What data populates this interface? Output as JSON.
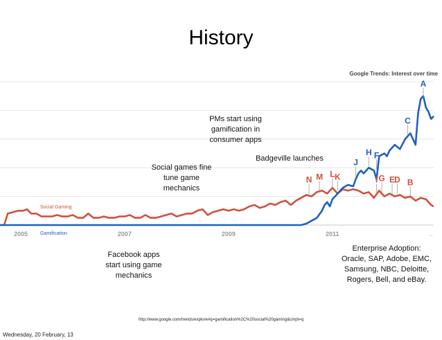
{
  "slide": {
    "title": "History",
    "trends_label": "Google Trends: Interest over time",
    "url": "http://www.google.com/trends/explore#q=gamification%2C%20social%20gaming&cmpt=q",
    "footer_date": "Wednesday, 20 February, 13"
  },
  "annotations": {
    "pms": [
      "PMs start using",
      "gamification in",
      "consumer apps"
    ],
    "badgeville": [
      "Badgeville launches"
    ],
    "social_games": [
      "Social games fine",
      "tune game",
      "mechanics"
    ],
    "facebook": [
      "Facebook apps",
      "start using game",
      "mechanics"
    ],
    "enterprise": [
      "Enterprise Adoption:",
      "Oracle, SAP, Adobe, EMC,",
      "Samsung, NBC, Deloitte,",
      "Rogers, Bell, and eBay."
    ]
  },
  "chart_data": {
    "type": "line",
    "source": "Google Trends: Interest over time",
    "x_ticks": [
      "2005",
      "2007",
      "2009",
      "2011"
    ],
    "x_ticks_value": [
      2005,
      2007,
      2009,
      2011
    ],
    "x_trailing_label": "..",
    "xlim": [
      2004.6,
      2012.95
    ],
    "ylim": [
      0,
      100
    ],
    "grid": true,
    "colors": {
      "social": "#d2503c",
      "gamification": "#2060c0",
      "grid": "#e4e4e4",
      "axis": "#999999"
    },
    "series": [
      {
        "name": "Social Gaming",
        "color": "#d2503c",
        "points": [
          [
            2004.6,
            0
          ],
          [
            2004.68,
            0
          ],
          [
            2004.75,
            8
          ],
          [
            2004.85,
            9
          ],
          [
            2004.95,
            10
          ],
          [
            2005.05,
            10
          ],
          [
            2005.12,
            11
          ],
          [
            2005.2,
            8
          ],
          [
            2005.3,
            8
          ],
          [
            2005.4,
            6
          ],
          [
            2005.5,
            6
          ],
          [
            2005.6,
            6
          ],
          [
            2005.7,
            7
          ],
          [
            2005.8,
            6
          ],
          [
            2005.9,
            6
          ],
          [
            2006.0,
            7
          ],
          [
            2006.1,
            5
          ],
          [
            2006.2,
            5
          ],
          [
            2006.3,
            8
          ],
          [
            2006.4,
            5
          ],
          [
            2006.5,
            5
          ],
          [
            2006.6,
            6
          ],
          [
            2006.7,
            5
          ],
          [
            2006.8,
            5
          ],
          [
            2006.9,
            6
          ],
          [
            2007.0,
            6
          ],
          [
            2007.1,
            7
          ],
          [
            2007.2,
            5
          ],
          [
            2007.3,
            5
          ],
          [
            2007.4,
            7
          ],
          [
            2007.5,
            5
          ],
          [
            2007.6,
            5
          ],
          [
            2007.7,
            6
          ],
          [
            2007.8,
            7
          ],
          [
            2007.9,
            8
          ],
          [
            2008.0,
            6
          ],
          [
            2008.1,
            7
          ],
          [
            2008.2,
            8
          ],
          [
            2008.3,
            8
          ],
          [
            2008.4,
            10
          ],
          [
            2008.5,
            11
          ],
          [
            2008.6,
            7
          ],
          [
            2008.7,
            9
          ],
          [
            2008.8,
            10
          ],
          [
            2008.9,
            11
          ],
          [
            2009.0,
            10
          ],
          [
            2009.1,
            11
          ],
          [
            2009.2,
            10
          ],
          [
            2009.3,
            11
          ],
          [
            2009.4,
            13
          ],
          [
            2009.5,
            14
          ],
          [
            2009.6,
            12
          ],
          [
            2009.7,
            13
          ],
          [
            2009.8,
            15
          ],
          [
            2009.9,
            14
          ],
          [
            2010.0,
            16
          ],
          [
            2010.1,
            17
          ],
          [
            2010.2,
            14
          ],
          [
            2010.3,
            17
          ],
          [
            2010.4,
            19
          ],
          [
            2010.5,
            21
          ],
          [
            2010.6,
            20
          ],
          [
            2010.7,
            23
          ],
          [
            2010.8,
            24
          ],
          [
            2010.9,
            22
          ],
          [
            2011.0,
            26
          ],
          [
            2011.1,
            22
          ],
          [
            2011.2,
            25
          ],
          [
            2011.3,
            24
          ],
          [
            2011.4,
            25
          ],
          [
            2011.5,
            24
          ],
          [
            2011.6,
            22
          ],
          [
            2011.7,
            23
          ],
          [
            2011.8,
            19
          ],
          [
            2011.9,
            24
          ],
          [
            2012.0,
            20
          ],
          [
            2012.1,
            22
          ],
          [
            2012.2,
            20
          ],
          [
            2012.3,
            21
          ],
          [
            2012.4,
            19
          ],
          [
            2012.5,
            20
          ],
          [
            2012.6,
            17
          ],
          [
            2012.7,
            19
          ],
          [
            2012.8,
            18
          ],
          [
            2012.9,
            14
          ],
          [
            2012.95,
            13
          ]
        ]
      },
      {
        "name": "Gamification",
        "color": "#2060c0",
        "points": [
          [
            2004.6,
            0
          ],
          [
            2010.4,
            0
          ],
          [
            2010.5,
            1
          ],
          [
            2010.6,
            3
          ],
          [
            2010.7,
            5
          ],
          [
            2010.8,
            10
          ],
          [
            2010.85,
            14
          ],
          [
            2010.9,
            16
          ],
          [
            2010.95,
            13
          ],
          [
            2011.0,
            18
          ],
          [
            2011.1,
            22
          ],
          [
            2011.2,
            26
          ],
          [
            2011.3,
            28
          ],
          [
            2011.4,
            27
          ],
          [
            2011.45,
            32
          ],
          [
            2011.5,
            36
          ],
          [
            2011.55,
            38
          ],
          [
            2011.6,
            36
          ],
          [
            2011.7,
            40
          ],
          [
            2011.8,
            38
          ],
          [
            2011.85,
            32
          ],
          [
            2011.9,
            48
          ],
          [
            2012.0,
            50
          ],
          [
            2012.05,
            48
          ],
          [
            2012.1,
            52
          ],
          [
            2012.2,
            56
          ],
          [
            2012.3,
            53
          ],
          [
            2012.4,
            60
          ],
          [
            2012.5,
            64
          ],
          [
            2012.6,
            56
          ],
          [
            2012.65,
            78
          ],
          [
            2012.7,
            88
          ],
          [
            2012.75,
            90
          ],
          [
            2012.8,
            82
          ],
          [
            2012.85,
            79
          ],
          [
            2012.9,
            74
          ],
          [
            2012.95,
            76
          ]
        ]
      }
    ],
    "legend_labels": {
      "social": "Social Gaming",
      "gamification": "Gamification"
    },
    "event_markers": [
      {
        "label": "N",
        "x": 2010.55,
        "y": 21,
        "series": "social"
      },
      {
        "label": "M",
        "x": 2010.75,
        "y": 23,
        "series": "social"
      },
      {
        "label": "L",
        "x": 2011.0,
        "y": 25,
        "series": "social"
      },
      {
        "label": "K",
        "x": 2011.1,
        "y": 23,
        "series": "social"
      },
      {
        "label": "I",
        "x": 2011.85,
        "y": 21,
        "series": "social"
      },
      {
        "label": "G",
        "x": 2011.95,
        "y": 22,
        "series": "social"
      },
      {
        "label": "E",
        "x": 2012.15,
        "y": 21,
        "series": "social"
      },
      {
        "label": "D",
        "x": 2012.25,
        "y": 21,
        "series": "social"
      },
      {
        "label": "B",
        "x": 2012.5,
        "y": 19,
        "series": "social"
      },
      {
        "label": "J",
        "x": 2011.45,
        "y": 33,
        "series": "gamification"
      },
      {
        "label": "H",
        "x": 2011.7,
        "y": 40,
        "series": "gamification"
      },
      {
        "label": "F",
        "x": 2011.85,
        "y": 38,
        "series": "gamification"
      },
      {
        "label": "C",
        "x": 2012.45,
        "y": 62,
        "series": "gamification"
      },
      {
        "label": "A",
        "x": 2012.75,
        "y": 88,
        "series": "gamification"
      }
    ]
  }
}
